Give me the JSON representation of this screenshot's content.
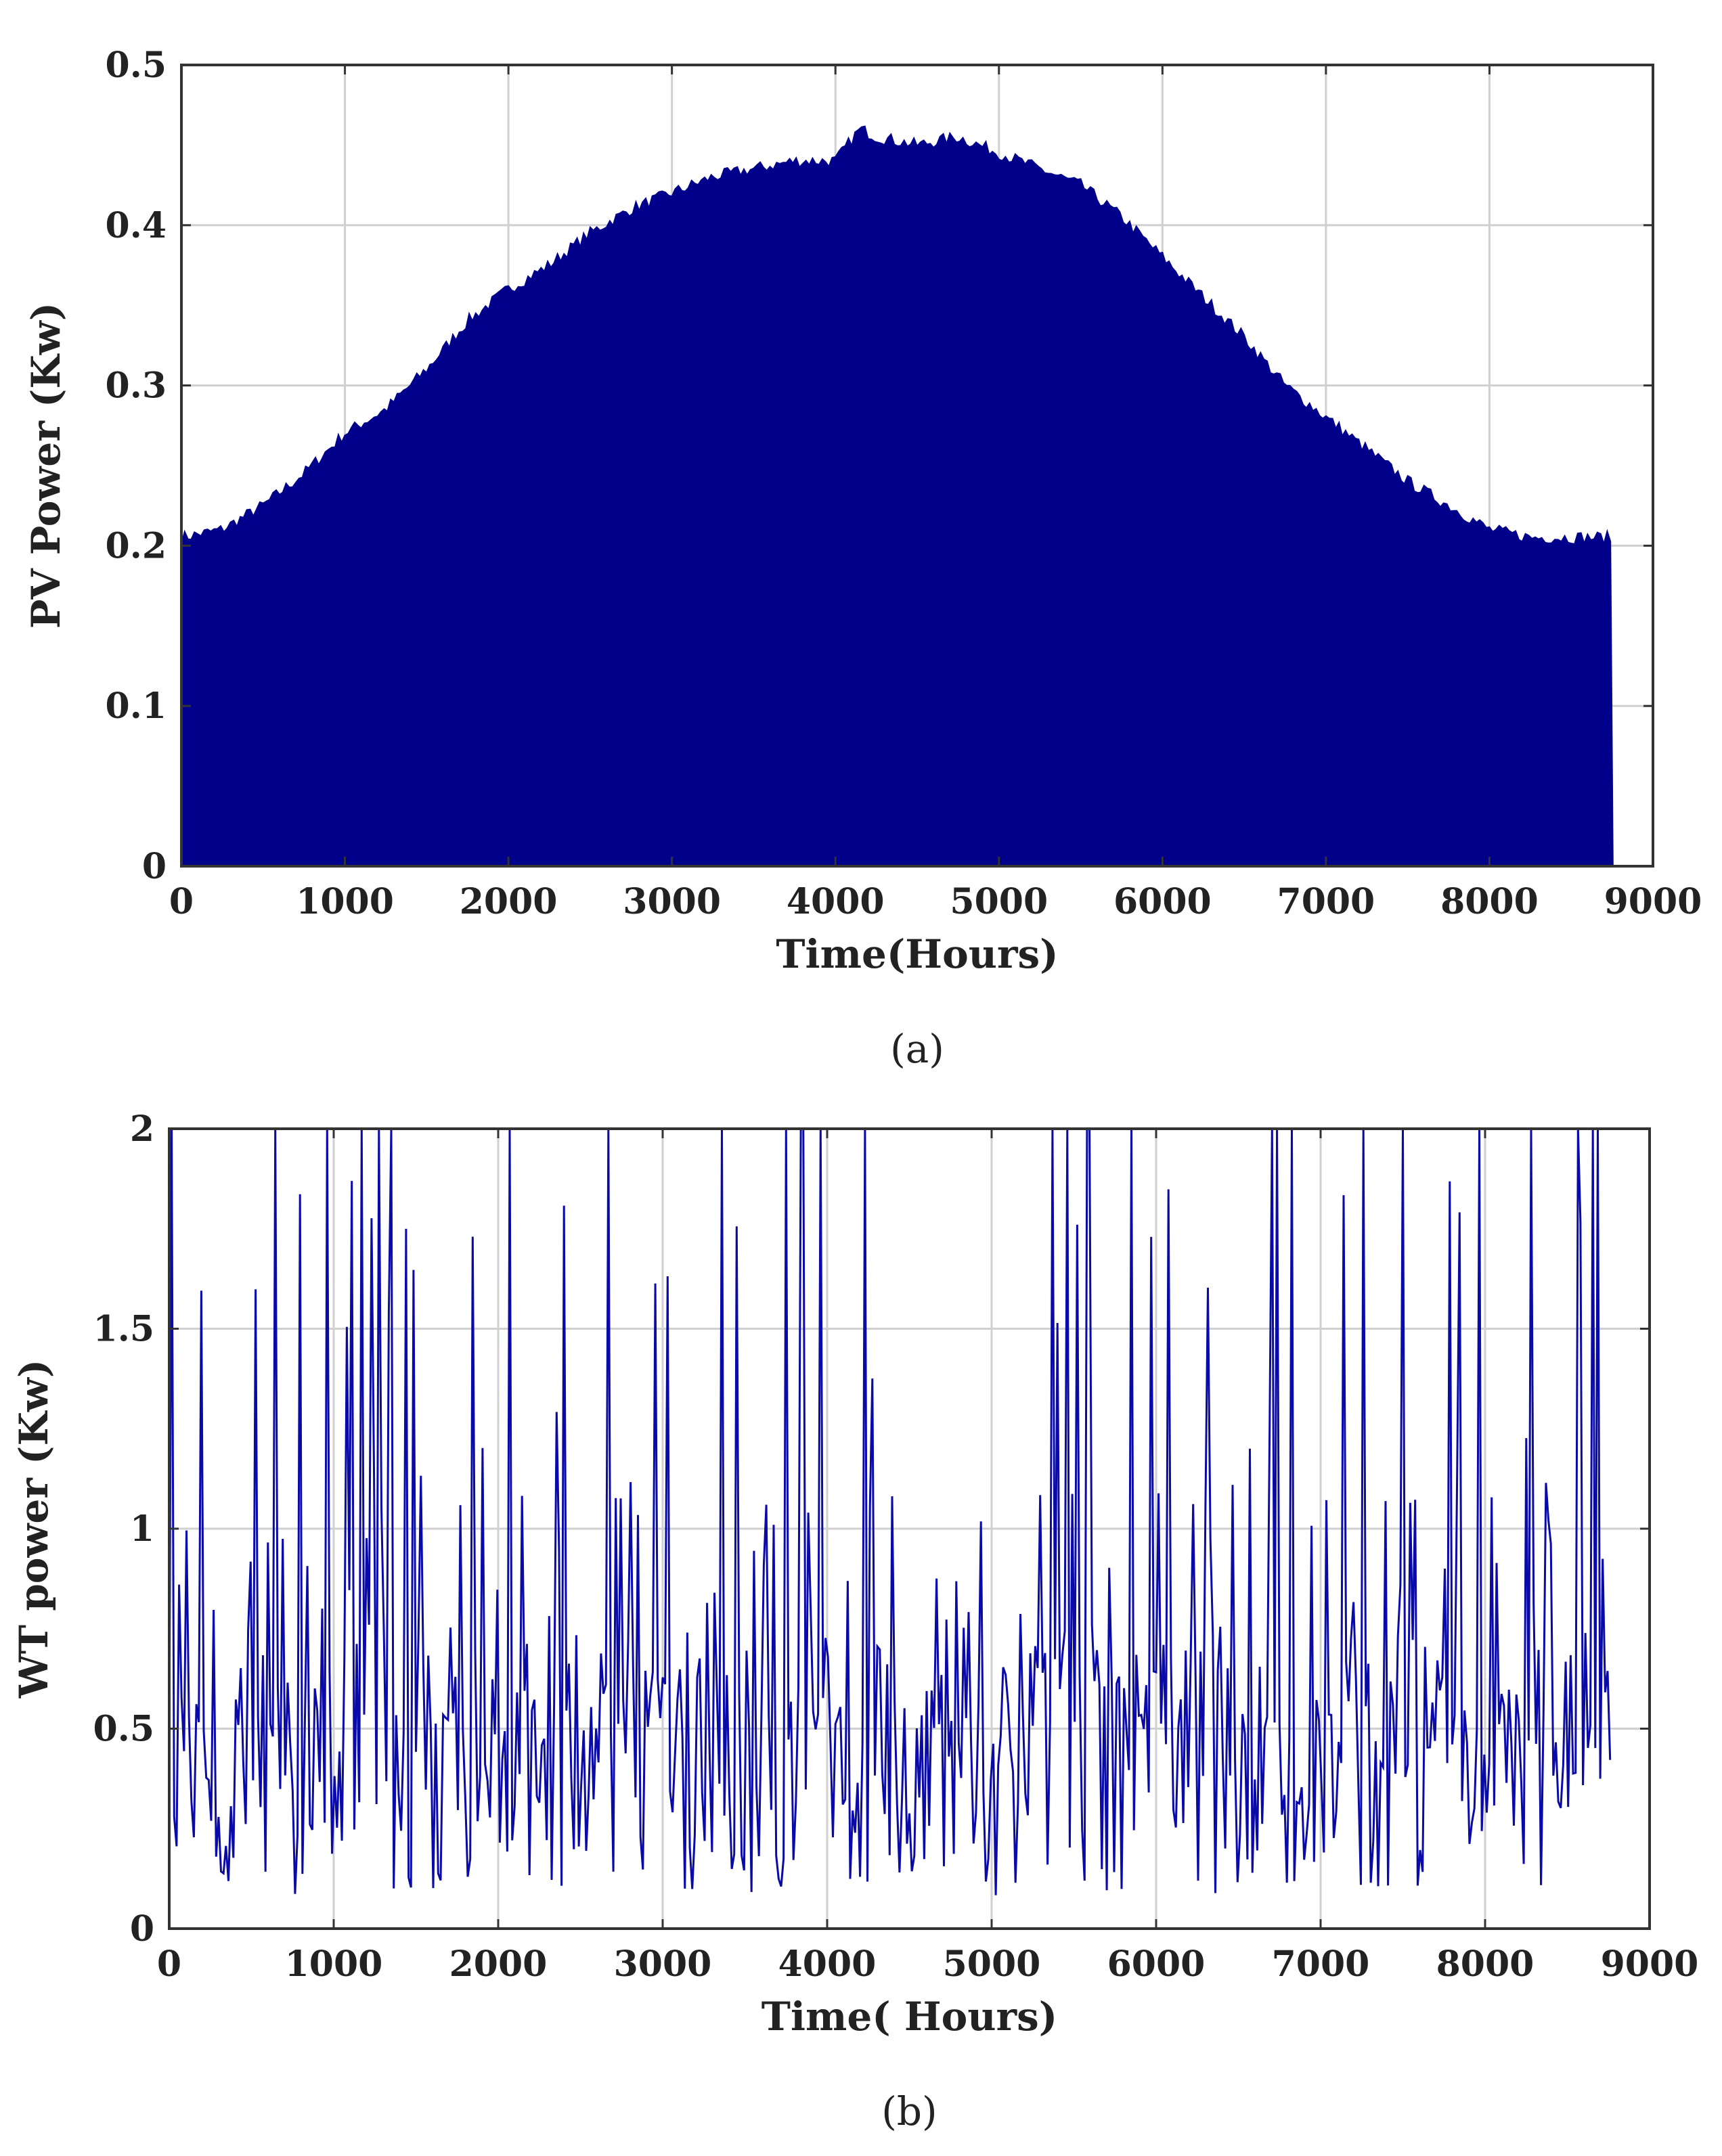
{
  "chart_data": [
    {
      "type": "area",
      "caption": "(a)",
      "xlabel": "Time(Hours)",
      "ylabel": "PV Power (Kw)",
      "xlim": [
        0,
        9000
      ],
      "ylim": [
        0,
        0.5
      ],
      "xticks": [
        "0",
        "1000",
        "2000",
        "3000",
        "4000",
        "5000",
        "6000",
        "7000",
        "8000",
        "9000"
      ],
      "yticks": [
        "0",
        "0.1",
        "0.2",
        "0.3",
        "0.4",
        "0.5"
      ],
      "grid": true,
      "color": "#00008B",
      "series": [
        {
          "x": [
            0,
            250,
            500,
            750,
            1000,
            1250,
            1500,
            1750,
            2000,
            2250,
            2500,
            2750,
            3000,
            3250,
            3500,
            3750,
            4000,
            4150,
            4250,
            4500,
            4750,
            5000,
            5250,
            5500,
            5750,
            6000,
            6250,
            6500,
            6750,
            7000,
            7250,
            7500,
            7750,
            8000,
            8250,
            8500,
            8750,
            8760
          ],
          "values": [
            0.205,
            0.21,
            0.225,
            0.245,
            0.27,
            0.285,
            0.31,
            0.34,
            0.36,
            0.375,
            0.395,
            0.41,
            0.42,
            0.43,
            0.435,
            0.44,
            0.44,
            0.46,
            0.455,
            0.45,
            0.455,
            0.445,
            0.435,
            0.425,
            0.405,
            0.38,
            0.355,
            0.33,
            0.3,
            0.28,
            0.26,
            0.24,
            0.225,
            0.21,
            0.205,
            0.205,
            0.205,
            0
          ]
        }
      ]
    },
    {
      "type": "line",
      "caption": "(b)",
      "xlabel": "Time( Hours)",
      "ylabel": "WT power (Kw)",
      "xlim": [
        0,
        9000
      ],
      "ylim": [
        0,
        2
      ],
      "xticks": [
        "0",
        "1000",
        "2000",
        "3000",
        "4000",
        "5000",
        "6000",
        "7000",
        "8000",
        "9000"
      ],
      "yticks": [
        "0",
        "0.5",
        "1",
        "1.5",
        "2"
      ],
      "grid": true,
      "color": "#0A0AA8",
      "series": [
        {
          "x_step": 15,
          "x_end": 8760,
          "typical_range": [
            0,
            2
          ],
          "typical_level": 0.35
        }
      ]
    }
  ]
}
